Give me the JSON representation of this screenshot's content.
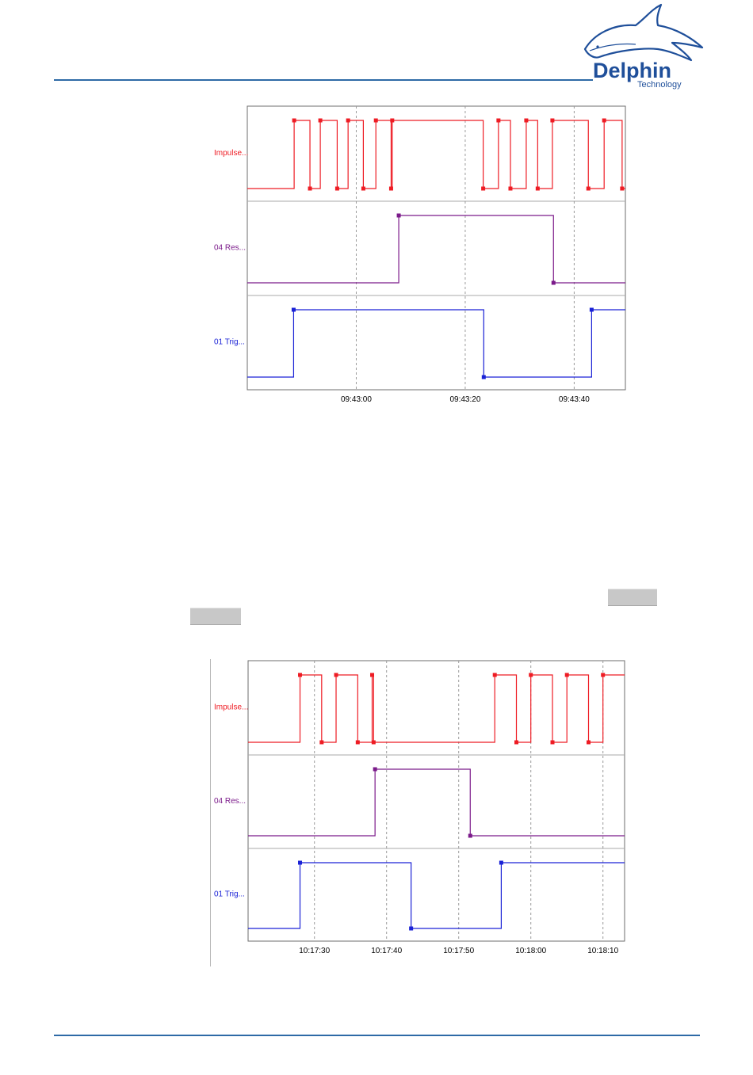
{
  "header": {
    "logo": {
      "icon": "dolphin-logo-icon",
      "brand": "Delphin",
      "tagline": "Technology",
      "colors": {
        "primary": "#1f4f9a",
        "rule": "#2e6aa6"
      }
    }
  },
  "charts": [
    {
      "id": "chart-1",
      "ticks": [
        {
          "t": 20,
          "label": "09:43:00"
        },
        {
          "t": 40,
          "label": "09:43:20"
        },
        {
          "t": 60,
          "label": "09:43:40"
        }
      ],
      "tmin": 0,
      "tmax": 69.4,
      "channels": [
        {
          "label": "Impulse...",
          "color": "#ee1c24",
          "edges": [
            8.6,
            11.5,
            13.4,
            16.5,
            18.5,
            21.3,
            23.6,
            26.4,
            26.6,
            43.3,
            46.1,
            48.3,
            51.2,
            53.3,
            56.0,
            62.6,
            65.5,
            68.8
          ],
          "start": 0
        },
        {
          "label": "04 Res...",
          "color": "#7b1a8a",
          "edges": [
            27.8,
            56.2
          ],
          "start": 0
        },
        {
          "label": "01 Trig...",
          "color": "#1a22d6",
          "edges": [
            8.5,
            43.4,
            63.2
          ],
          "start": 0
        }
      ]
    },
    {
      "id": "chart-2",
      "ticks": [
        {
          "t": 30,
          "label": "10:17:30"
        },
        {
          "t": 40,
          "label": "10:17:40"
        },
        {
          "t": 50,
          "label": "10:17:50"
        },
        {
          "t": 60,
          "label": "10:18:00"
        },
        {
          "t": 70,
          "label": "10:18:10"
        }
      ],
      "tmin": 20.8,
      "tmax": 73.0,
      "channels": [
        {
          "label": "Impulse...",
          "color": "#ee1c24",
          "edges": [
            28.0,
            31.0,
            33.0,
            36.0,
            38.0,
            38.2,
            55.0,
            58.0,
            60.0,
            63.0,
            65.0,
            68.0,
            70.0
          ],
          "start": 0
        },
        {
          "label": "04 Res...",
          "color": "#7b1a8a",
          "edges": [
            38.4,
            51.6
          ],
          "start": 0
        },
        {
          "label": "01 Trig...",
          "color": "#1a22d6",
          "edges": [
            28.0,
            43.4,
            55.9
          ],
          "start": 0
        }
      ]
    }
  ]
}
